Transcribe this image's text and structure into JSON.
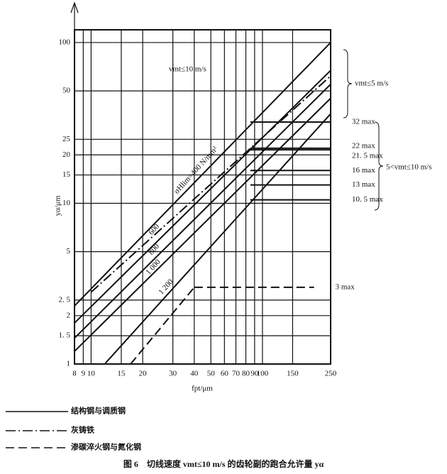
{
  "chart_data": {
    "type": "line",
    "log_x": true,
    "log_y": true,
    "grid": true,
    "title": "图 6　切线速度 vmt≤10 m/s 的齿轮副的跑合允许量 yα",
    "x_label": "fpt/μm",
    "y_label": "yα/μm",
    "xlim": [
      8,
      250
    ],
    "ylim": [
      1,
      120
    ],
    "xticks": [
      8,
      9,
      10,
      15,
      20,
      30,
      40,
      50,
      60,
      70,
      80,
      90,
      100,
      150,
      250
    ],
    "yticks": [
      1,
      {
        "value": 1.5,
        "label": "1. 5"
      },
      2,
      {
        "value": 2.5,
        "label": "2. 5"
      },
      5,
      10,
      15,
      20,
      25,
      50,
      100
    ],
    "annotations": [
      "vmt≤10 m/s",
      "vmt≤5 m/s",
      "5<vmt≤10 m/s"
    ],
    "series": [
      {
        "name": "结构钢与调质钢",
        "color": "#111111",
        "dash": "solid",
        "lines": [
          {
            "label": "σHlim=400 N/mm²",
            "x": [
              8,
              250
            ],
            "y": [
              2.3,
              100
            ]
          },
          {
            "label": "600",
            "x": [
              8,
              250
            ],
            "y": [
              1.8,
              67
            ]
          },
          {
            "label": "800",
            "x": [
              8,
              250
            ],
            "y": [
              1.45,
              55
            ]
          },
          {
            "label": "1 000",
            "x": [
              8,
              250
            ],
            "y": [
              1.2,
              45
            ]
          },
          {
            "label": "1 200",
            "x": [
              12,
              250
            ],
            "y": [
              1,
              36
            ]
          }
        ],
        "limits": [
          {
            "value": 32,
            "label": "32 max",
            "x": [
              85,
              250
            ]
          },
          {
            "value": 22,
            "label": "22 max",
            "x": [
              85,
              250
            ]
          },
          {
            "value": 21.5,
            "label": "21. 5 max",
            "x": [
              85,
              250
            ]
          },
          {
            "value": 16,
            "label": "16 max",
            "x": [
              85,
              250
            ]
          },
          {
            "value": 13,
            "label": "13 max",
            "x": [
              85,
              250
            ]
          },
          {
            "value": 10.5,
            "label": "10. 5 max",
            "x": [
              85,
              250
            ]
          }
        ]
      },
      {
        "name": "灰铸铁",
        "color": "#111111",
        "dash": "dashdot",
        "lines": [
          {
            "x": [
              10,
              250
            ],
            "y": [
              2.8,
              62
            ]
          }
        ]
      },
      {
        "name": "渗碳淬火钢与氮化钢",
        "color": "#111111",
        "dash": "dashed",
        "lines": [
          {
            "x": [
              17,
              40
            ],
            "y": [
              1,
              3
            ]
          }
        ],
        "limits": [
          {
            "value": 3,
            "label": "3 max",
            "x": [
              40,
              200
            ]
          }
        ]
      }
    ]
  }
}
